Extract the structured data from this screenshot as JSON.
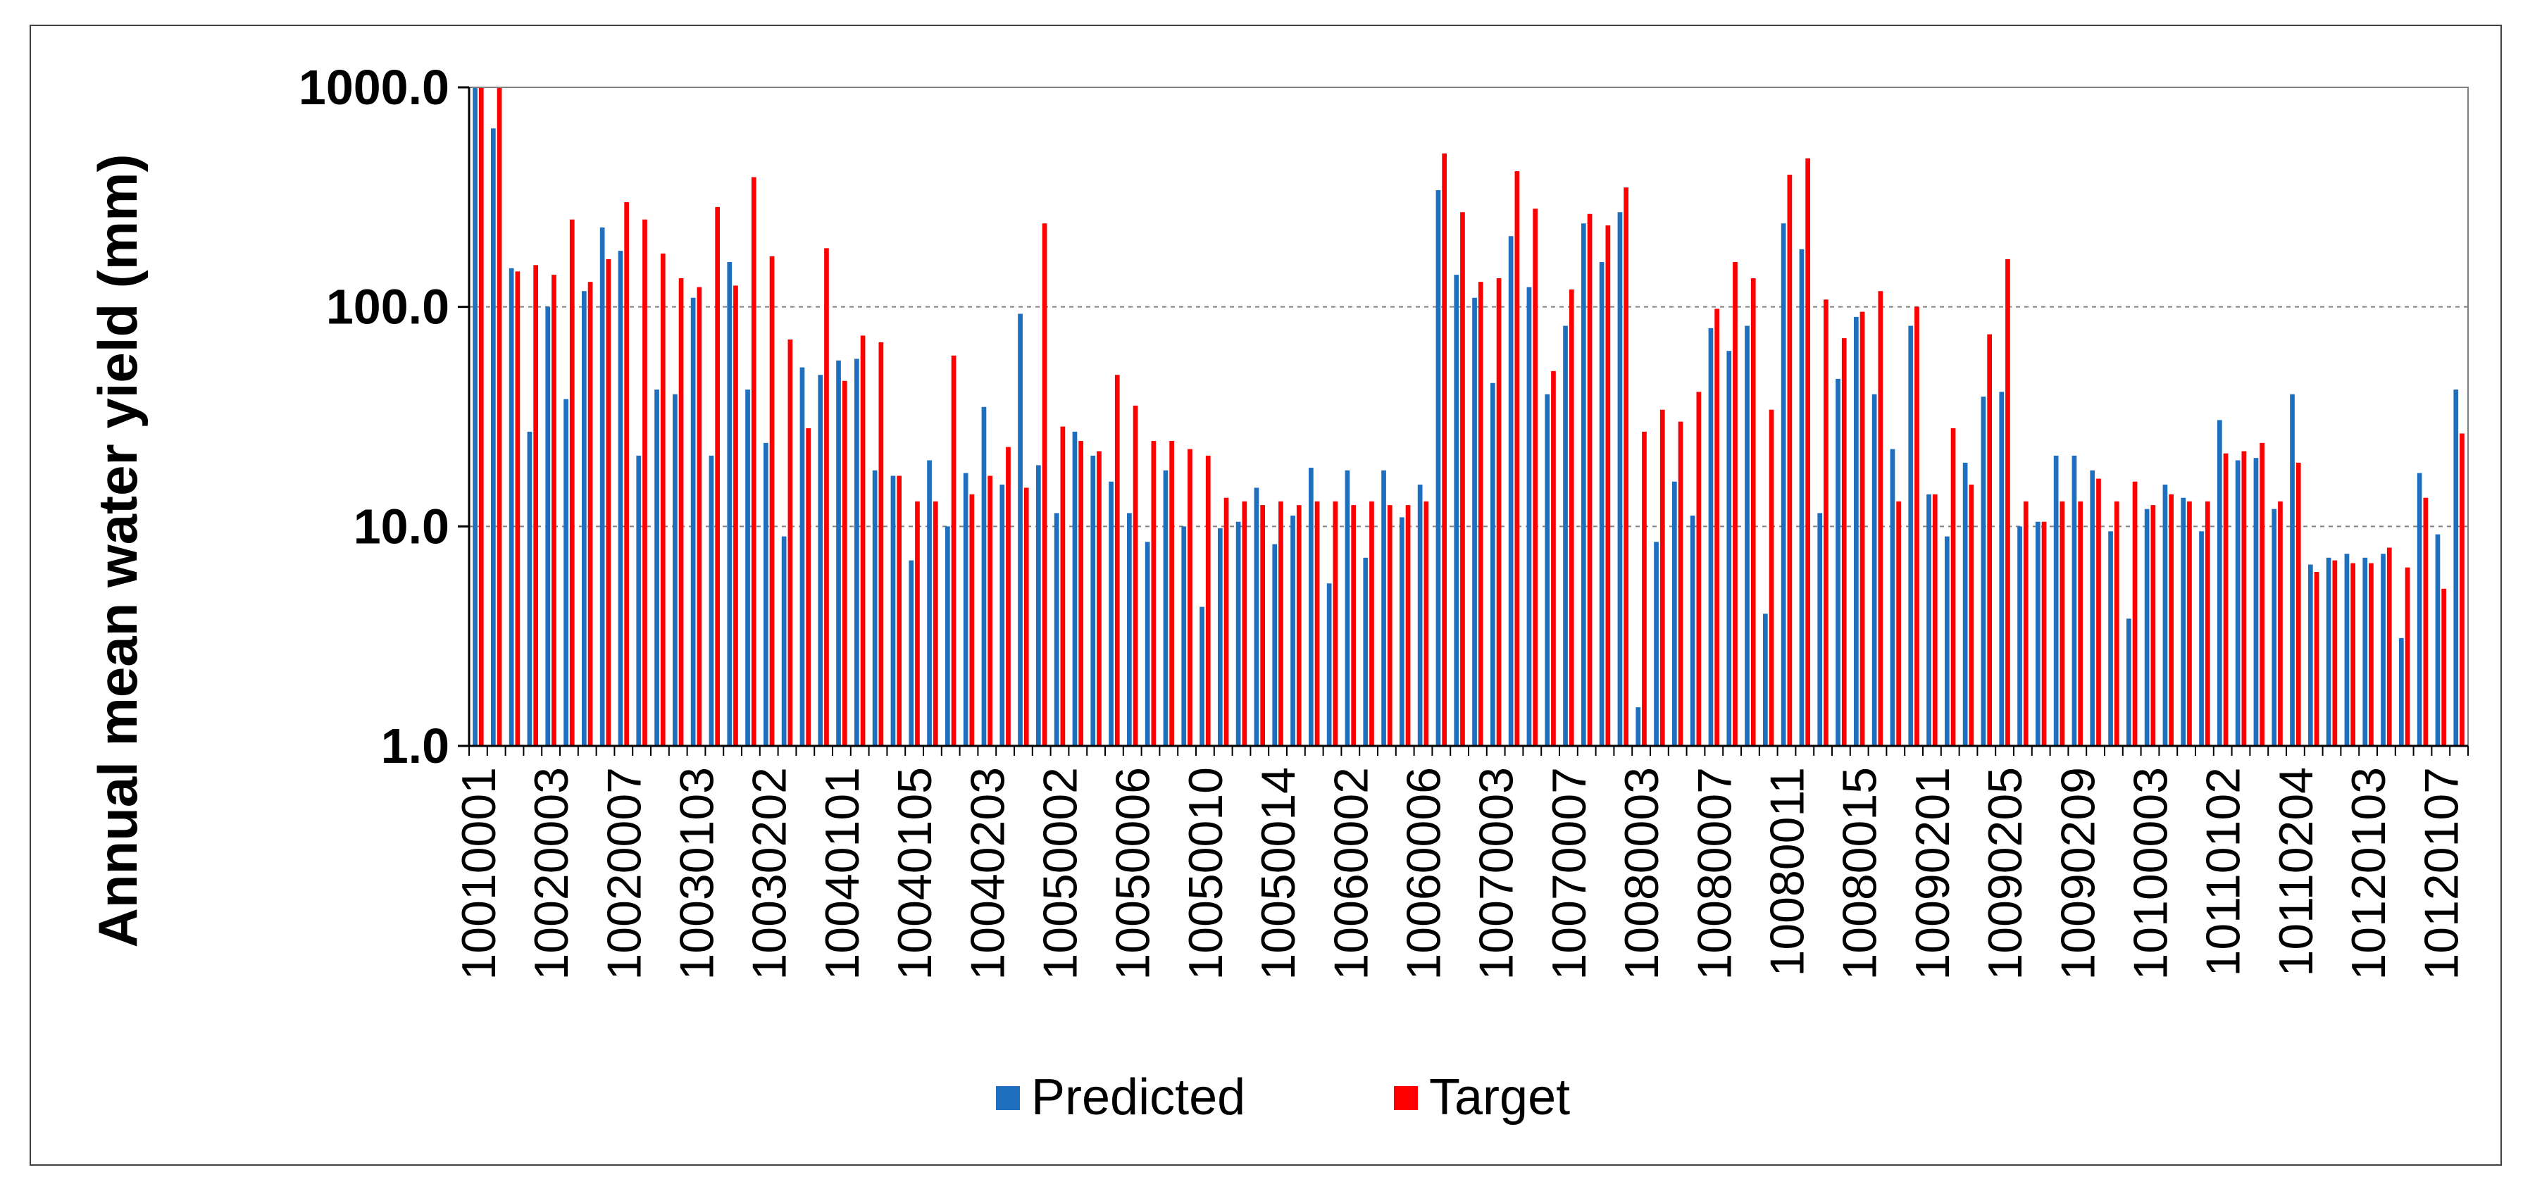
{
  "chart_data": {
    "type": "bar",
    "title": "",
    "xlabel": "",
    "ylabel": "Annual mean water yield (mm)",
    "yscale": "log",
    "ylim": [
      1,
      1000
    ],
    "yticks": [
      "1.0",
      "10.0",
      "100.0",
      "1000.0"
    ],
    "grid": "horizontal dashed",
    "legend_position": "bottom",
    "tick_labels": [
      "10010001",
      "10020003",
      "10020007",
      "10030103",
      "10030202",
      "10040101",
      "10040105",
      "10040203",
      "10050002",
      "10050006",
      "10050010",
      "10050014",
      "10060002",
      "10060006",
      "10070003",
      "10070007",
      "10080003",
      "10080007",
      "10080011",
      "10080015",
      "10090201",
      "10090205",
      "10090209",
      "10100003",
      "10110102",
      "10110204",
      "10120103",
      "10120107"
    ],
    "series": [
      {
        "name": "Predicted",
        "color": "#1f6fbf",
        "values": [
          1000,
          650,
          150,
          27,
          100,
          38,
          118,
          230,
          180,
          21,
          42,
          40,
          110,
          21,
          160,
          42,
          24,
          9,
          53,
          49,
          57,
          58,
          18,
          17,
          7,
          20,
          10,
          17.5,
          35,
          15.5,
          93,
          19,
          11.5,
          27,
          21,
          16,
          11.5,
          8.5,
          18,
          10,
          4.3,
          9.8,
          10.5,
          15,
          8.3,
          11.2,
          18.5,
          5.5,
          18,
          7.2,
          18,
          11,
          15.5,
          340,
          140,
          110,
          45,
          210,
          123,
          40,
          82,
          240,
          160,
          270,
          1.5,
          8.5,
          16,
          11.2,
          80,
          63,
          82,
          4,
          240,
          183,
          11.5,
          47,
          90,
          40,
          22.5,
          82,
          14,
          9,
          19.5,
          39,
          41,
          10,
          10.5,
          21,
          21,
          18,
          9.5,
          3.8,
          12,
          15.5,
          13.5,
          9.5,
          30.5,
          20,
          20.5,
          12,
          40,
          6.7,
          7.2,
          7.5,
          7.2,
          7.5,
          3.1,
          17.5,
          9.2,
          42
        ]
      },
      {
        "name": "Target",
        "color": "#ff0000",
        "values": [
          1000,
          1000,
          145,
          155,
          140,
          250,
          130,
          165,
          300,
          250,
          175,
          135,
          123,
          285,
          125,
          390,
          170,
          71,
          28,
          185,
          46,
          74,
          69,
          17,
          13,
          13,
          60,
          14,
          17,
          23,
          15,
          240,
          28.5,
          24.5,
          22,
          49,
          35.5,
          24.5,
          24.5,
          22.5,
          21,
          13.5,
          13,
          12.5,
          13,
          12.5,
          13,
          13,
          12.5,
          13,
          12.5,
          12.5,
          13,
          500,
          270,
          130,
          135,
          415,
          280,
          51,
          120,
          265,
          235,
          350,
          27,
          34,
          30,
          41,
          98,
          160,
          135,
          34,
          400,
          475,
          108,
          72,
          95,
          118,
          13,
          100,
          14,
          28,
          15.5,
          75,
          165,
          13,
          10.5,
          13,
          13,
          16.5,
          13,
          16,
          12.5,
          14,
          13,
          13,
          21.5,
          22,
          24,
          13,
          19.5,
          6.2,
          7,
          6.8,
          6.8,
          8,
          6.5,
          13.5,
          5.2,
          26.5
        ]
      }
    ]
  }
}
